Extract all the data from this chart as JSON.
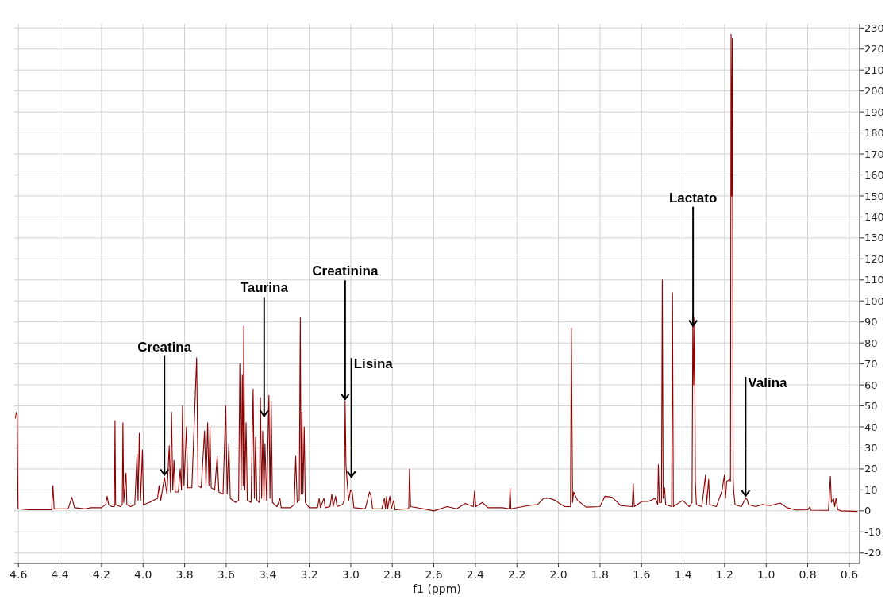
{
  "chart_data": {
    "type": "line",
    "xlabel": "f1 (ppm)",
    "xlim": [
      4.62,
      0.55
    ],
    "xticks": [
      4.6,
      4.4,
      4.2,
      {
        "value": 4,
        "label": "4.0"
      },
      3.8,
      3.6,
      3.4,
      3.2,
      {
        "value": 3,
        "label": "3.0"
      },
      2.8,
      2.6,
      2.4,
      2.2,
      {
        "value": 2,
        "label": "2.0"
      },
      1.8,
      1.6,
      1.4,
      1.2,
      {
        "value": 1,
        "label": "1.0"
      },
      0.8,
      0.6
    ],
    "ylim": [
      -25,
      232
    ],
    "yticks": [
      -20,
      -10,
      0,
      10,
      20,
      30,
      40,
      50,
      60,
      70,
      80,
      90,
      100,
      110,
      120,
      130,
      140,
      150,
      160,
      170,
      180,
      190,
      200,
      210,
      220,
      230
    ],
    "grid": true,
    "marker": "none",
    "line_style": "solid",
    "series": [
      {
        "color": "#8b0000",
        "x": [
          4.615,
          4.61,
          4.606,
          4.602,
          4.55,
          4.44,
          4.434,
          4.428,
          4.36,
          4.343,
          4.33,
          4.28,
          4.25,
          4.2,
          4.18,
          4.173,
          4.166,
          4.15,
          4.138,
          4.135,
          4.132,
          4.11,
          4.1,
          4.097,
          4.093,
          4.082,
          4.078,
          4.06,
          4.04,
          4.029,
          4.024,
          4.018,
          4.012,
          4.003,
          3.998,
          3.97,
          3.93,
          3.923,
          3.915,
          3.897,
          3.885,
          3.874,
          3.868,
          3.863,
          3.857,
          3.851,
          3.845,
          3.83,
          3.821,
          3.815,
          3.81,
          3.803,
          3.791,
          3.785,
          3.765,
          3.742,
          3.735,
          3.72,
          3.704,
          3.697,
          3.689,
          3.683,
          3.678,
          3.672,
          3.655,
          3.643,
          3.635,
          3.615,
          3.602,
          3.595,
          3.587,
          3.58,
          3.555,
          3.54,
          3.534,
          3.528,
          3.522,
          3.518,
          3.515,
          3.51,
          3.504,
          3.498,
          3.48,
          3.47,
          3.464,
          3.458,
          3.452,
          3.44,
          3.435,
          3.429,
          3.424,
          3.418,
          3.413,
          3.405,
          3.394,
          3.389,
          3.383,
          3.377,
          3.355,
          3.341,
          3.335,
          3.29,
          3.272,
          3.265,
          3.258,
          3.248,
          3.243,
          3.239,
          3.235,
          3.23,
          3.224,
          3.219,
          3.2,
          3.16,
          3.152,
          3.146,
          3.129,
          3.123,
          3.1,
          3.091,
          3.085,
          3.073,
          3.066,
          3.04,
          3.031,
          3.027,
          3.023,
          3.016,
          3.01,
          3.001,
          2.993,
          2.985,
          2.93,
          2.91,
          2.902,
          2.895,
          2.85,
          2.838,
          2.833,
          2.827,
          2.822,
          2.812,
          2.805,
          2.793,
          2.787,
          2.73,
          2.721,
          2.717,
          2.712,
          2.65,
          2.6,
          2.536,
          2.49,
          2.449,
          2.41,
          2.404,
          2.398,
          2.366,
          2.34,
          2.27,
          2.237,
          2.233,
          2.229,
          2.146,
          2.1,
          2.071,
          2.044,
          2.014,
          1.995,
          1.97,
          1.942,
          1.938,
          1.932,
          1.927,
          1.908,
          1.867,
          1.8,
          1.776,
          1.742,
          1.7,
          1.645,
          1.64,
          1.635,
          1.598,
          1.568,
          1.534,
          1.522,
          1.519,
          1.514,
          1.504,
          1.5,
          1.496,
          1.489,
          1.484,
          1.455,
          1.451,
          1.447,
          1.402,
          1.37,
          1.357,
          1.353,
          1.349,
          1.345,
          1.341,
          1.336,
          1.31,
          1.292,
          1.287,
          1.277,
          1.272,
          1.24,
          1.213,
          1.201,
          1.196,
          1.19,
          1.175,
          1.172,
          1.169,
          1.166,
          1.163,
          1.159,
          1.156,
          1.15,
          1.12,
          1.099,
          1.092,
          1.085,
          1.05,
          1.02,
          0.98,
          0.933,
          0.9,
          0.857,
          0.8,
          0.789,
          0.785,
          0.7,
          0.691,
          0.686,
          0.676,
          0.67,
          0.664,
          0.655,
          0.638,
          0.56
        ],
        "values": [
          44,
          47,
          46,
          1,
          0.5,
          0.5,
          12,
          1,
          1,
          6.5,
          1.5,
          1,
          1.5,
          1.5,
          3,
          7,
          3,
          2,
          2,
          43,
          3,
          2,
          3,
          42,
          4,
          18,
          3,
          2,
          3,
          27,
          5,
          37,
          5,
          29,
          3,
          4,
          6,
          12,
          5,
          16,
          8,
          31,
          9,
          47,
          10,
          24,
          9,
          9,
          20,
          10,
          50,
          12,
          40,
          11,
          11,
          73,
          12,
          11,
          38,
          12,
          42,
          12,
          40,
          11,
          10,
          26,
          9,
          8,
          50,
          8,
          32,
          6,
          4,
          5,
          70,
          10,
          65,
          12,
          88,
          10,
          42,
          5,
          4,
          58,
          6,
          35,
          5,
          4,
          54,
          6,
          38,
          5,
          32,
          5,
          55,
          6,
          52,
          4,
          2,
          6,
          1.5,
          1.5,
          3,
          26,
          4,
          5,
          92,
          8,
          47,
          8,
          40,
          4,
          1.5,
          1.5,
          6,
          1.5,
          6,
          1.5,
          2,
          8,
          2,
          7,
          2,
          3,
          5,
          52,
          22,
          12,
          5,
          10,
          9,
          1.5,
          1,
          9,
          7,
          1,
          1,
          6,
          1,
          7,
          1,
          7,
          1,
          5,
          0.5,
          1,
          1,
          20,
          2,
          1,
          0,
          2,
          1,
          3.5,
          2,
          9.5,
          2,
          4,
          1.5,
          1.5,
          1,
          11,
          1,
          2.5,
          3,
          6,
          6,
          5,
          3.5,
          2,
          2,
          87,
          4,
          9,
          5,
          1.8,
          2,
          7,
          6.5,
          2.5,
          2,
          13,
          2,
          4.5,
          4.5,
          6,
          3,
          22,
          4,
          4,
          110,
          6,
          11,
          3,
          2,
          104,
          2,
          5,
          2,
          4,
          93,
          60,
          92,
          14,
          3,
          2,
          17,
          3,
          15,
          3,
          2,
          9.5,
          17,
          6,
          14,
          15,
          14,
          227,
          150,
          225,
          15,
          9,
          3,
          2,
          6,
          5.4,
          3,
          2,
          3,
          2.5,
          3.7,
          1.5,
          0.4,
          0.5,
          2,
          0.3,
          0.2,
          16.5,
          4,
          6,
          2,
          6,
          0.5,
          0,
          -0.3
        ]
      }
    ],
    "annotations": [
      {
        "text": "Creatina",
        "x": 3.897,
        "y": 16
      },
      {
        "text": "Taurina",
        "x": 3.417,
        "y": 44
      },
      {
        "text": "Creatinina",
        "x": 3.027,
        "y": 52
      },
      {
        "text": "Lisina",
        "x": 2.997,
        "y": 15
      },
      {
        "text": "Lactato",
        "x": 1.352,
        "y": 87
      },
      {
        "text": "Valina",
        "x": 1.099,
        "y": 6
      }
    ]
  }
}
